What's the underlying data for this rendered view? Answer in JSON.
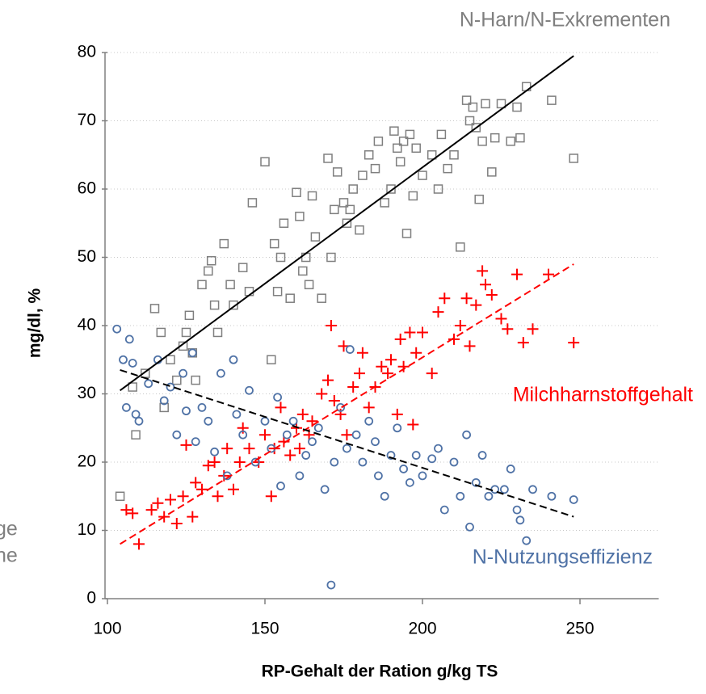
{
  "chart_data": {
    "type": "scatter",
    "xlabel": "RP-Gehalt der Ration g/kg TS",
    "ylabel": "mg/dl,  %",
    "xlim": [
      100,
      275
    ],
    "ylim": [
      0,
      80
    ],
    "xticks": [
      100,
      150,
      200,
      250
    ],
    "yticks": [
      0,
      10,
      20,
      30,
      40,
      50,
      60,
      70,
      80
    ],
    "grid": true,
    "annotations": [
      "ge",
      "ne"
    ],
    "series": [
      {
        "name": "N-Harn/N-Exkrementen",
        "color": "#7f7f7f",
        "marker": "square",
        "x": [
          104,
          108,
          109,
          112,
          115,
          117,
          118,
          120,
          122,
          124,
          125,
          126,
          127,
          128,
          130,
          132,
          133,
          134,
          135,
          137,
          139,
          140,
          143,
          145,
          146,
          150,
          152,
          153,
          154,
          155,
          156,
          158,
          160,
          161,
          162,
          163,
          164,
          165,
          166,
          168,
          170,
          171,
          172,
          173,
          175,
          176,
          177,
          178,
          180,
          181,
          183,
          185,
          186,
          188,
          190,
          191,
          192,
          193,
          194,
          195,
          196,
          197,
          198,
          200,
          203,
          205,
          206,
          208,
          210,
          212,
          214,
          215,
          216,
          217,
          218,
          219,
          220,
          222,
          223,
          225,
          228,
          230,
          231,
          233,
          241,
          248
        ],
        "values": [
          15,
          31,
          24,
          33,
          42.5,
          39,
          28,
          35,
          32,
          37,
          39,
          41.5,
          36,
          32,
          46,
          48,
          49.5,
          43,
          39,
          52,
          46,
          43,
          48.5,
          45,
          58,
          64,
          35,
          52,
          45,
          50,
          55,
          44,
          59.5,
          56,
          48,
          50,
          46,
          59,
          53,
          44,
          64.5,
          50,
          57,
          62.5,
          58,
          55,
          57,
          60,
          54,
          62,
          65,
          63,
          67,
          58,
          60,
          68.5,
          66,
          64,
          67,
          53.5,
          68,
          59,
          66,
          62,
          65,
          60,
          68,
          63,
          65,
          51.5,
          73,
          70,
          72,
          69,
          58.5,
          67,
          72.5,
          62.5,
          67.5,
          72.5,
          67,
          72,
          67.5,
          75,
          73,
          64.5
        ]
      },
      {
        "name": "Milchharnstoffgehalt",
        "color": "#ff0000",
        "marker": "plus",
        "x": [
          106,
          108,
          110,
          114,
          116,
          118,
          120,
          122,
          124,
          125,
          127,
          128,
          130,
          132,
          134,
          135,
          137,
          138,
          140,
          142,
          143,
          145,
          148,
          150,
          152,
          153,
          155,
          156,
          158,
          160,
          161,
          162,
          164,
          165,
          168,
          170,
          171,
          172,
          174,
          175,
          176,
          178,
          180,
          181,
          183,
          185,
          187,
          189,
          190,
          192,
          193,
          194,
          196,
          197,
          198,
          200,
          203,
          205,
          207,
          210,
          212,
          214,
          215,
          217,
          219,
          220,
          222,
          225,
          227,
          230,
          232,
          235,
          240,
          248
        ],
        "values": [
          13,
          12.5,
          8,
          13,
          14,
          12,
          14.5,
          11,
          15,
          22.5,
          12,
          17,
          16,
          19.5,
          20,
          15,
          18,
          22,
          16,
          20,
          25,
          22,
          20,
          24,
          15,
          22,
          28,
          23,
          21,
          25,
          22,
          27,
          24,
          26,
          30,
          32,
          40,
          29,
          27,
          37,
          24,
          31,
          33,
          36,
          28,
          31,
          34,
          33,
          35,
          27,
          38,
          34,
          39,
          25.5,
          36,
          39,
          33,
          42,
          44,
          38,
          40,
          44,
          37,
          43,
          48,
          46,
          44.5,
          41,
          39.5,
          47.5,
          37.5,
          39.5,
          47.5,
          37.5
        ]
      },
      {
        "name": "N-Nutzungseffizienz",
        "color": "#4f72a6",
        "marker": "circle",
        "x": [
          103,
          105,
          106,
          107,
          108,
          109,
          110,
          113,
          116,
          118,
          120,
          122,
          124,
          125,
          127,
          128,
          130,
          132,
          134,
          136,
          138,
          140,
          141,
          143,
          145,
          147,
          150,
          152,
          154,
          155,
          157,
          159,
          161,
          163,
          165,
          167,
          169,
          171,
          172,
          174,
          176,
          177,
          179,
          181,
          183,
          185,
          186,
          188,
          190,
          192,
          194,
          196,
          198,
          200,
          203,
          205,
          207,
          210,
          212,
          214,
          215,
          217,
          219,
          221,
          223,
          226,
          228,
          230,
          231,
          233,
          235,
          241,
          248
        ],
        "values": [
          39.5,
          35,
          28,
          38,
          34.5,
          27,
          26,
          31.5,
          35,
          29,
          31,
          24,
          33,
          27.5,
          36,
          23,
          28,
          26,
          21.5,
          33,
          18,
          35,
          27,
          24,
          30.5,
          20,
          26,
          22,
          29.5,
          16.5,
          24,
          26,
          18,
          21,
          23,
          25,
          16,
          2,
          20,
          28,
          22,
          36.5,
          24,
          20,
          26,
          23,
          18,
          15,
          21,
          25,
          19,
          17,
          21,
          18,
          20.5,
          22,
          13,
          20,
          15,
          24,
          10.5,
          17,
          21,
          15,
          16,
          16,
          19,
          13,
          11.5,
          8.5,
          16,
          15,
          14.5
        ]
      }
    ],
    "trendlines": [
      {
        "x": [
          104,
          248
        ],
        "y": [
          30.5,
          79.5
        ],
        "color": "#000000",
        "dash": false
      },
      {
        "x": [
          104,
          248
        ],
        "y": [
          8,
          49
        ],
        "color": "#ff0000",
        "dash": true
      },
      {
        "x": [
          104,
          248
        ],
        "y": [
          33.5,
          12
        ],
        "color": "#000000",
        "dash": true
      }
    ]
  }
}
